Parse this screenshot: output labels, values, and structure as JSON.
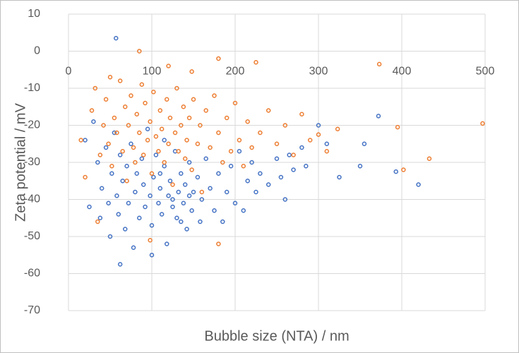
{
  "chart_data": {
    "type": "scatter",
    "x_label": "Bubble size (NTA) / nm",
    "y_label": "Zeta potential / mV",
    "xlim": [
      0,
      500
    ],
    "xticks": [
      0,
      100,
      200,
      300,
      400,
      500
    ],
    "ylim": [
      -70,
      10
    ],
    "yticks": [
      -70,
      -60,
      -50,
      -40,
      -30,
      -20,
      -10,
      0,
      10
    ],
    "grid": true,
    "series": [
      {
        "color": "#4472c4",
        "x": [
          57,
          62,
          100,
          372,
          420,
          393,
          350,
          355,
          300,
          310,
          325,
          260,
          280,
          285,
          270,
          20,
          25,
          30,
          35,
          38,
          40,
          45,
          48,
          50,
          52,
          55,
          58,
          60,
          62,
          65,
          68,
          70,
          72,
          75,
          78,
          80,
          82,
          85,
          88,
          90,
          92,
          95,
          98,
          100,
          102,
          105,
          108,
          110,
          112,
          115,
          118,
          120,
          122,
          125,
          128,
          130,
          132,
          135,
          138,
          140,
          142,
          145,
          148,
          150,
          155,
          158,
          160,
          165,
          170,
          175,
          180,
          185,
          190,
          195,
          200,
          205,
          210,
          215,
          220,
          225,
          230,
          240,
          250,
          255,
          265,
          110,
          125,
          135,
          115,
          145
        ],
        "values": [
          3.5,
          -57.5,
          -55,
          -17.5,
          -36,
          -32.5,
          -31,
          -25,
          -20,
          -25,
          -34,
          -40,
          -26,
          -31,
          -32,
          -24,
          -42,
          -19,
          -30,
          -45,
          -37,
          -26,
          -41,
          -50,
          -33,
          -22,
          -39,
          -44,
          -28,
          -35,
          -48,
          -31,
          -41,
          -25,
          -53,
          -38,
          -33,
          -45,
          -29,
          -36,
          -42,
          -21,
          -39,
          -47,
          -34,
          -28,
          -41,
          -37,
          -44,
          -31,
          -52,
          -39,
          -35,
          -42,
          -27,
          -45,
          -38,
          -33,
          -41,
          -36,
          -48,
          -30,
          -43,
          -38,
          -34,
          -46,
          -40,
          -29,
          -37,
          -43,
          -33,
          -46,
          -38,
          -31,
          -41,
          -27,
          -43,
          -35,
          -30,
          -38,
          -33,
          -36,
          -29,
          -34,
          -28,
          -33,
          -40,
          -46,
          -24,
          -39
        ]
      },
      {
        "color": "#ed7d31",
        "x": [
          497,
          433,
          402,
          395,
          373,
          323,
          310,
          300,
          85,
          20,
          15,
          180,
          225,
          50,
          148,
          180,
          35,
          98,
          120,
          28,
          32,
          38,
          42,
          45,
          48,
          52,
          55,
          58,
          62,
          65,
          68,
          70,
          72,
          75,
          78,
          80,
          82,
          85,
          88,
          90,
          92,
          95,
          98,
          100,
          102,
          105,
          108,
          110,
          112,
          115,
          118,
          120,
          122,
          125,
          128,
          130,
          132,
          135,
          138,
          140,
          142,
          145,
          148,
          150,
          155,
          158,
          160,
          165,
          170,
          175,
          180,
          185,
          190,
          195,
          200,
          205,
          210,
          215,
          220,
          230,
          240,
          250,
          260,
          270,
          280,
          290
        ],
        "values": [
          -19.5,
          -29,
          -32,
          -20.5,
          -3.5,
          -21,
          -27,
          -22.5,
          0,
          -34,
          -24,
          -2,
          -3,
          -7,
          -5.5,
          -52,
          -46,
          -51,
          -4,
          -16,
          -10,
          -28,
          -20,
          -13,
          -25,
          -31,
          -18,
          -22,
          -8,
          -27,
          -15,
          -35,
          -20,
          -12,
          -26,
          -30,
          -17,
          -22,
          -9,
          -28,
          -14,
          -24,
          -19,
          -33,
          -11,
          -23,
          -27,
          -16,
          -21,
          -30,
          -13,
          -25,
          -18,
          -36,
          -22,
          -10,
          -27,
          -20,
          -15,
          -29,
          -24,
          -18,
          -32,
          -13,
          -25,
          -20,
          -38,
          -16,
          -26,
          -12,
          -22,
          -30,
          -18,
          -27,
          -14,
          -24,
          -31,
          -19,
          -26,
          -22,
          -16,
          -25,
          -20,
          -28,
          -17,
          -24
        ]
      }
    ]
  }
}
